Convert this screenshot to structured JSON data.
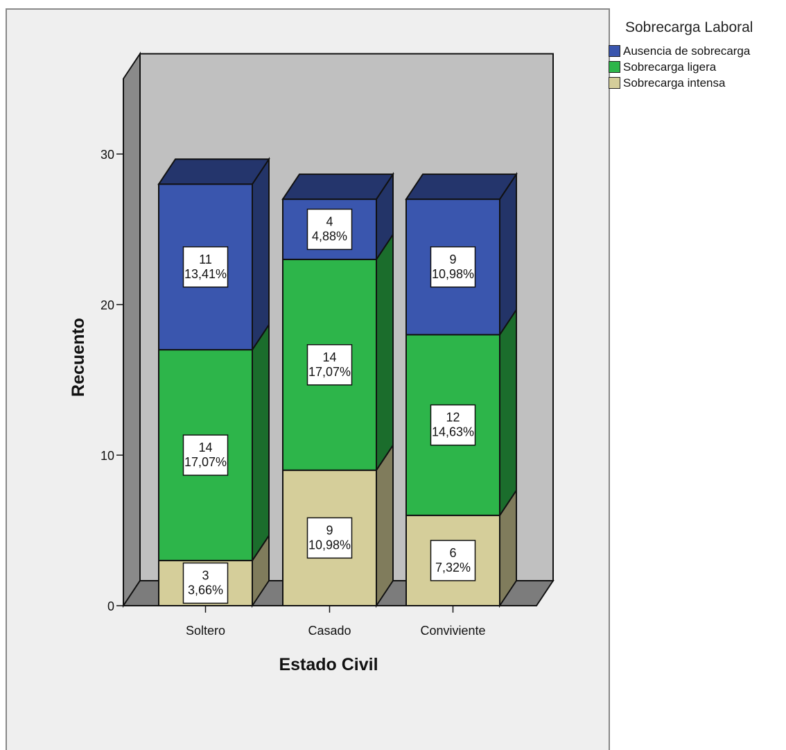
{
  "chart_data": {
    "type": "bar",
    "stacked": true,
    "three_d": true,
    "xlabel": "Estado Civil",
    "ylabel": "Recuento",
    "categories": [
      "Soltero",
      "Casado",
      "Conviviente"
    ],
    "ylim": [
      0,
      35
    ],
    "yticks": [
      0,
      10,
      20,
      30
    ],
    "legend_title": "Sobrecarga Laboral",
    "legend_position": "top-right",
    "series": [
      {
        "name": "Sobrecarga intensa",
        "values": [
          3,
          9,
          6
        ],
        "labels": [
          "3,66%",
          "10,98%",
          "7,32%"
        ],
        "color": "#d5ce9a"
      },
      {
        "name": "Sobrecarga ligera",
        "values": [
          14,
          14,
          12
        ],
        "labels": [
          "17,07%",
          "17,07%",
          "14,63%"
        ],
        "color": "#2db54a"
      },
      {
        "name": "Ausencia de sobrecarga",
        "values": [
          11,
          4,
          9
        ],
        "labels": [
          "13,41%",
          "4,88%",
          "10,98%"
        ],
        "color": "#3a56ae"
      }
    ],
    "legend_order": [
      "Ausencia de sobrecarga",
      "Sobrecarga ligera",
      "Sobrecarga intensa"
    ]
  }
}
